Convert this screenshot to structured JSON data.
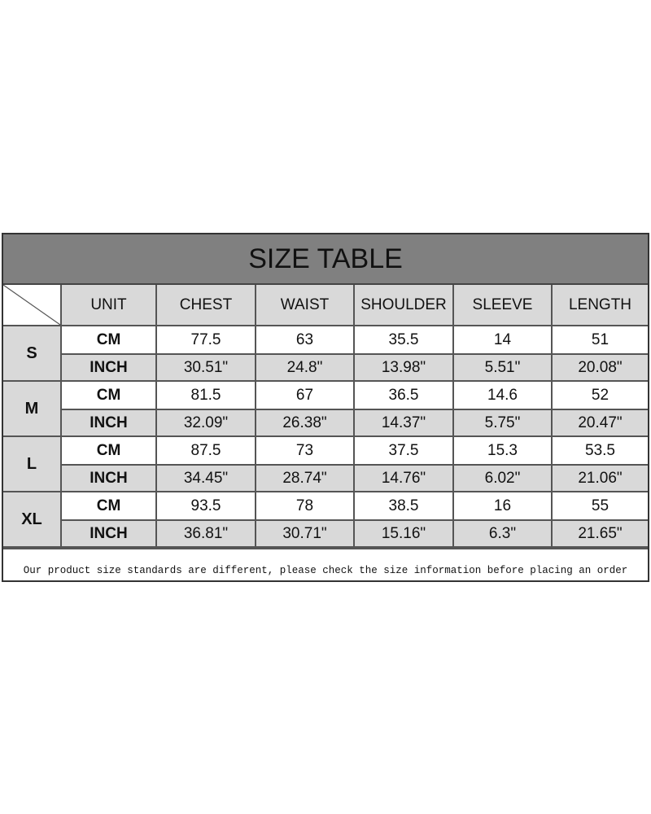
{
  "title": "SIZE TABLE",
  "headers": [
    "UNIT",
    "CHEST",
    "WAIST",
    "SHOULDER",
    "SLEEVE",
    "LENGTH"
  ],
  "rows": [
    {
      "size": "S",
      "cm": [
        "CM",
        "77.5",
        "63",
        "35.5",
        "14",
        "51"
      ],
      "inch": [
        "INCH",
        "30.51\"",
        "24.8\"",
        "13.98\"",
        "5.51\"",
        "20.08\""
      ]
    },
    {
      "size": "M",
      "cm": [
        "CM",
        "81.5",
        "67",
        "36.5",
        "14.6",
        "52"
      ],
      "inch": [
        "INCH",
        "32.09\"",
        "26.38\"",
        "14.37\"",
        "5.75\"",
        "20.47\""
      ]
    },
    {
      "size": "L",
      "cm": [
        "CM",
        "87.5",
        "73",
        "37.5",
        "15.3",
        "53.5"
      ],
      "inch": [
        "INCH",
        "34.45\"",
        "28.74\"",
        "14.76\"",
        "6.02\"",
        "21.06\""
      ]
    },
    {
      "size": "XL",
      "cm": [
        "CM",
        "93.5",
        "78",
        "38.5",
        "16",
        "55"
      ],
      "inch": [
        "INCH",
        "36.81\"",
        "30.71\"",
        "15.16\"",
        "6.3\"",
        "21.65\""
      ]
    }
  ],
  "note": "Our product size standards are different, please check the size information before placing an order"
}
